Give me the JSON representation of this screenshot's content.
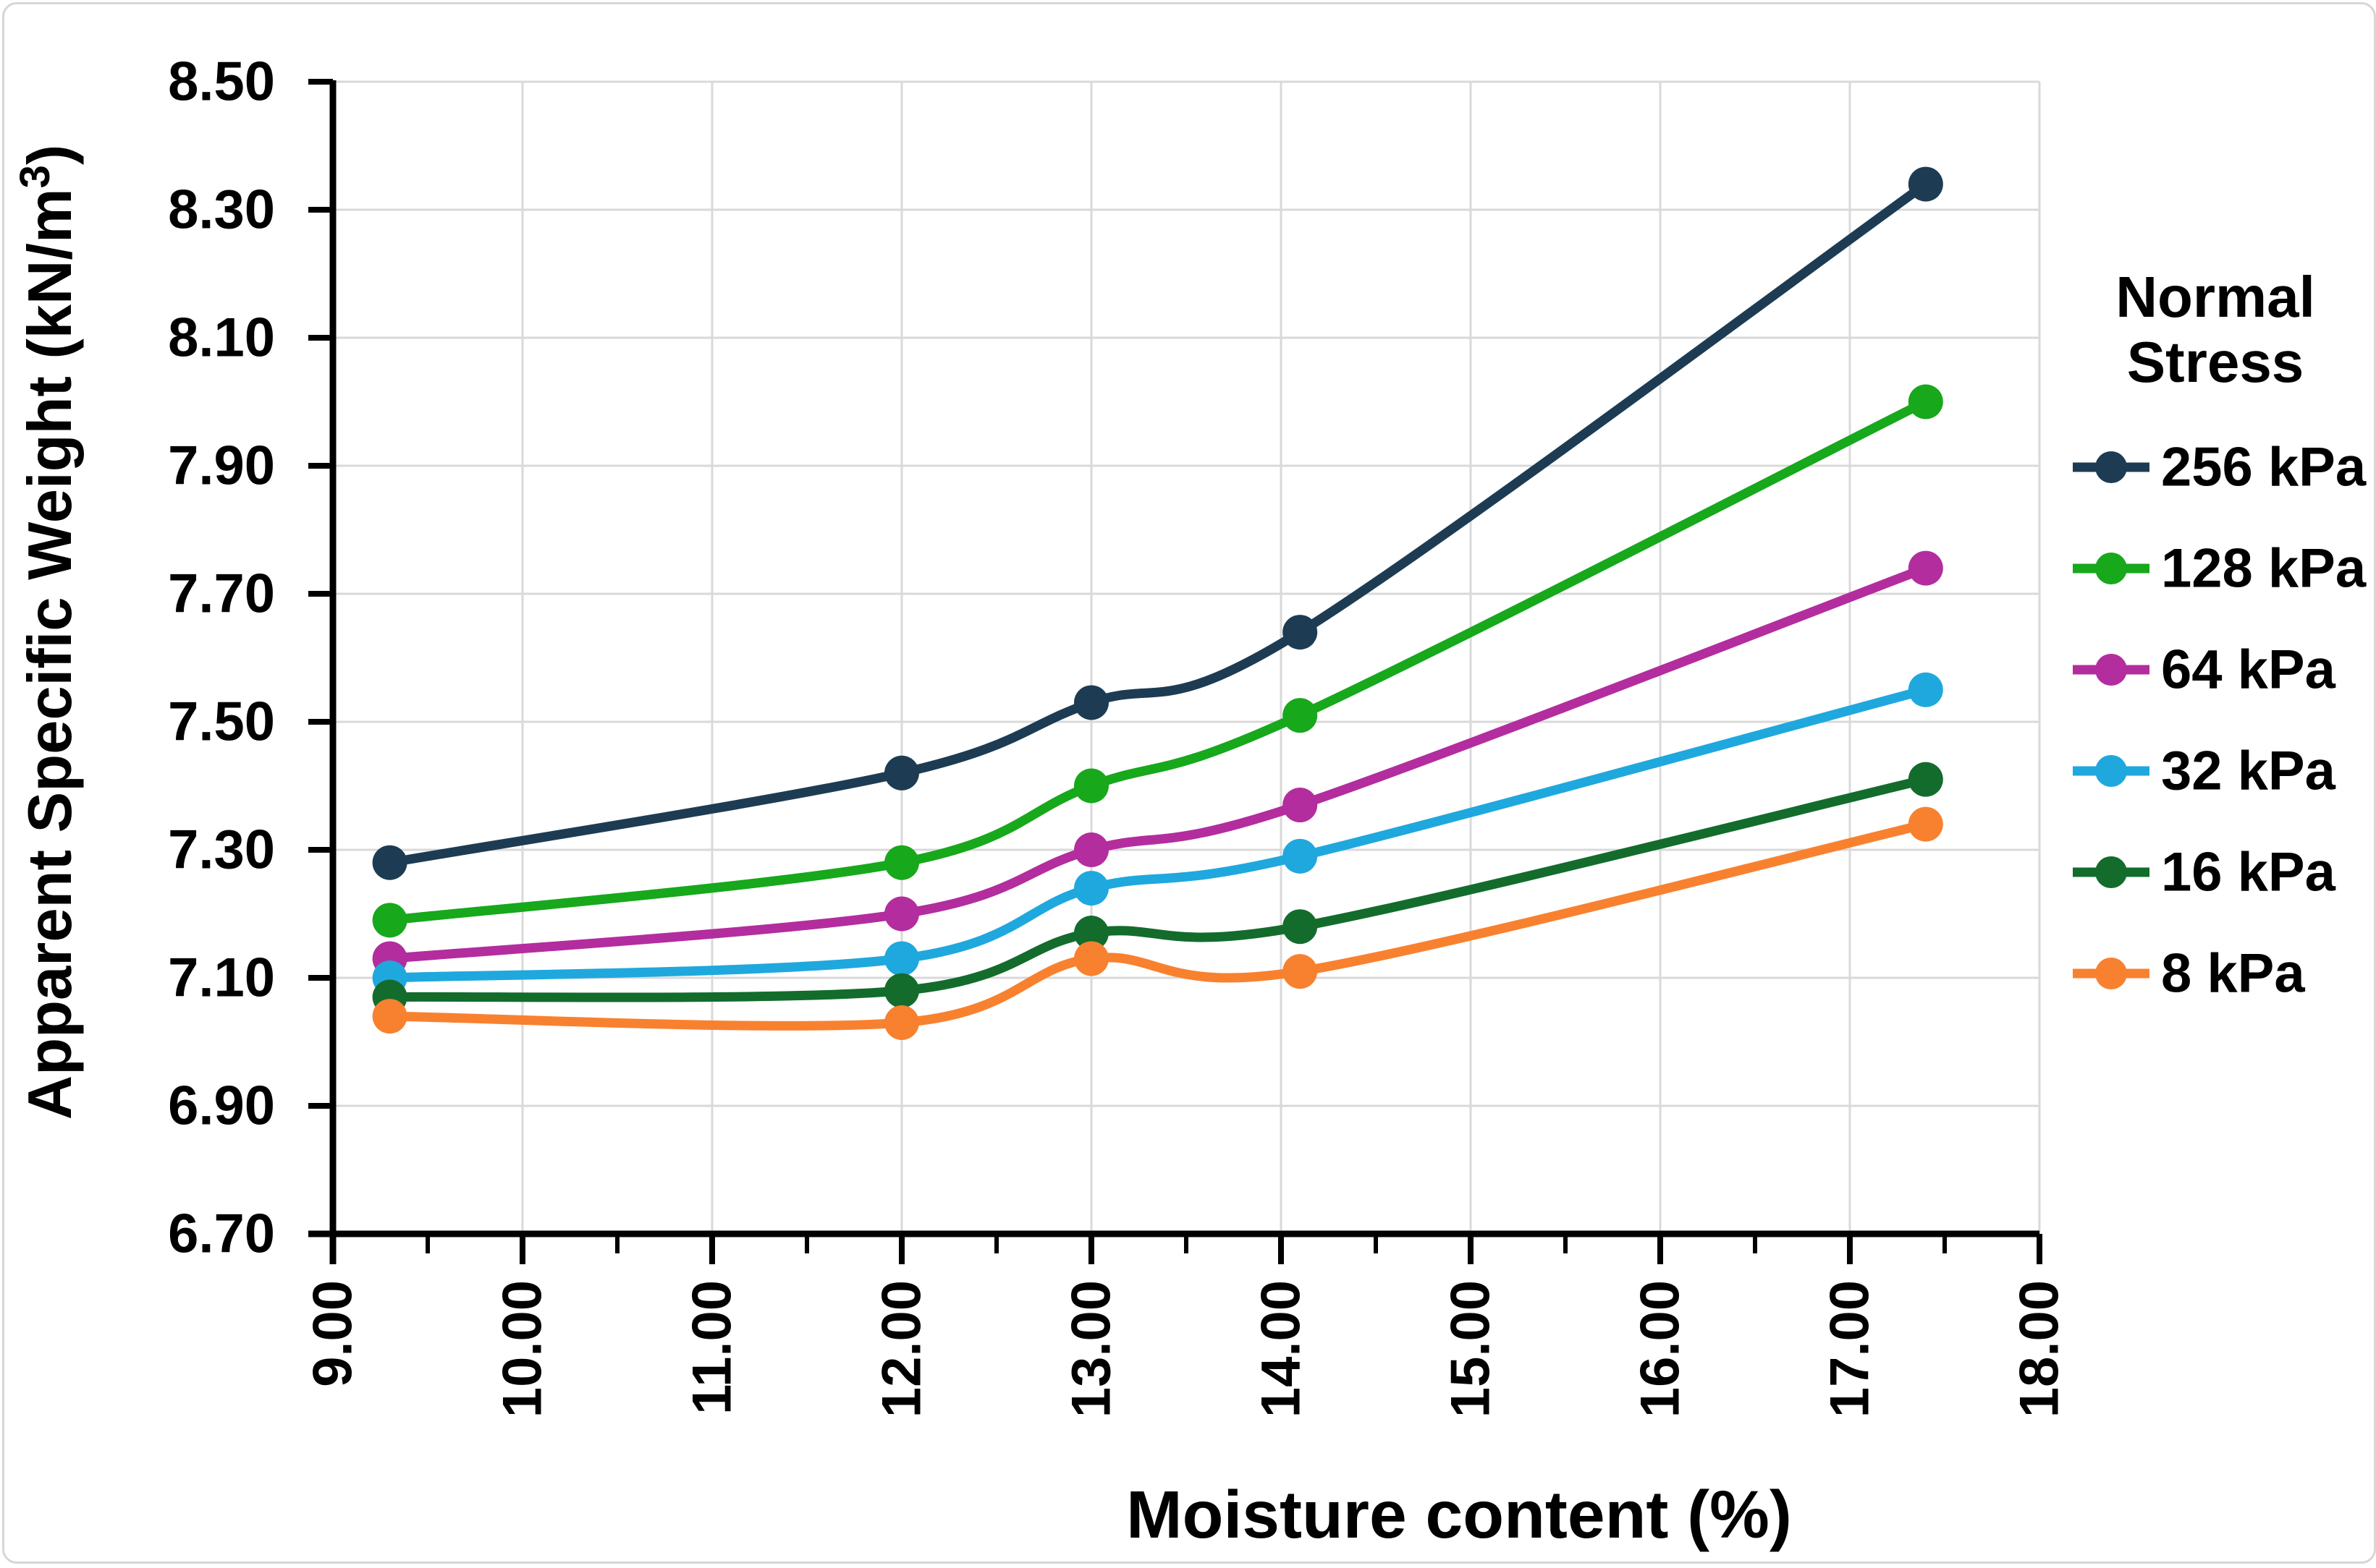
{
  "chart_data": {
    "type": "line",
    "title": "",
    "xlabel": "Moisture content (%)",
    "ylabel": "Apparent Specific Weight (kN/m³)",
    "legend_title_lines": [
      "Normal",
      "Stress"
    ],
    "legend_position": "right",
    "grid": true,
    "x": [
      9.3,
      12.0,
      13.0,
      14.1,
      17.4
    ],
    "series": [
      {
        "name": "256 kPa",
        "color": "#1d3c53",
        "values": [
          7.28,
          7.42,
          7.53,
          7.64,
          8.34
        ]
      },
      {
        "name": "128 kPa",
        "color": "#17a81c",
        "values": [
          7.19,
          7.28,
          7.4,
          7.51,
          8.0
        ]
      },
      {
        "name": "64 kPa",
        "color": "#b32d9e",
        "values": [
          7.13,
          7.2,
          7.3,
          7.37,
          7.74
        ]
      },
      {
        "name": "32 kPa",
        "color": "#1fa8dd",
        "values": [
          7.1,
          7.13,
          7.24,
          7.29,
          7.55
        ]
      },
      {
        "name": "16 kPa",
        "color": "#136c2c",
        "values": [
          7.07,
          7.08,
          7.17,
          7.18,
          7.41
        ]
      },
      {
        "name": "8 kPa",
        "color": "#f8812f",
        "values": [
          7.04,
          7.03,
          7.13,
          7.11,
          7.34
        ]
      }
    ],
    "x_tick_labels": [
      "9.00",
      "10.00",
      "11.00",
      "12.00",
      "13.00",
      "14.00",
      "15.00",
      "16.00",
      "17.00",
      "18.00"
    ],
    "y_tick_labels": [
      "6.70",
      "6.90",
      "7.10",
      "7.30",
      "7.50",
      "7.70",
      "7.90",
      "8.10",
      "8.30",
      "8.50"
    ],
    "xlim": [
      9,
      18
    ],
    "ylim": [
      6.7,
      8.5
    ]
  },
  "colors": {
    "gridline": "#d9d9d9",
    "axis": "#000000",
    "frame_border": "#d6d6d6",
    "background": "#ffffff"
  }
}
